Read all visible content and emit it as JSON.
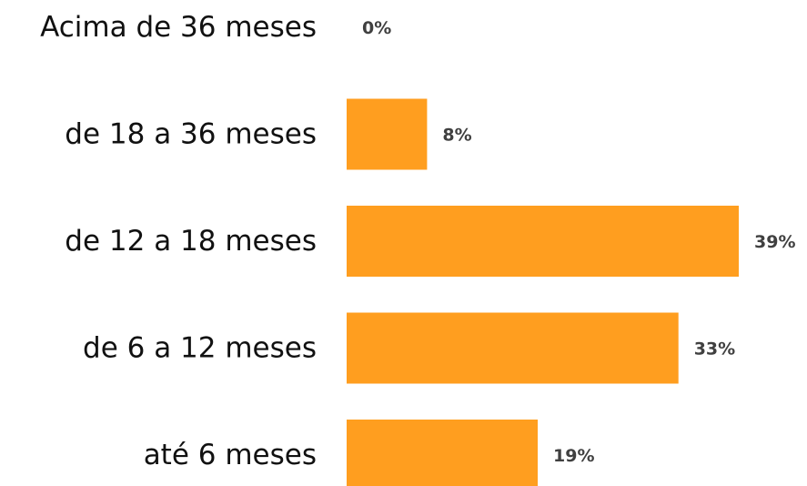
{
  "chart_data": {
    "type": "bar",
    "orientation": "horizontal",
    "categories": [
      "Acima de 36 meses",
      "de 18 a 36 meses",
      "de 12 a 18 meses",
      "de 6 a 12 meses",
      "até 6 meses"
    ],
    "values": [
      0,
      8,
      39,
      33,
      19
    ],
    "value_labels": [
      "0%",
      "8%",
      "39%",
      "33%",
      "19%"
    ],
    "unit": "%",
    "xlim": [
      0,
      39
    ],
    "grid": false,
    "legend": "none",
    "bar_color": "#FF9E1F"
  }
}
